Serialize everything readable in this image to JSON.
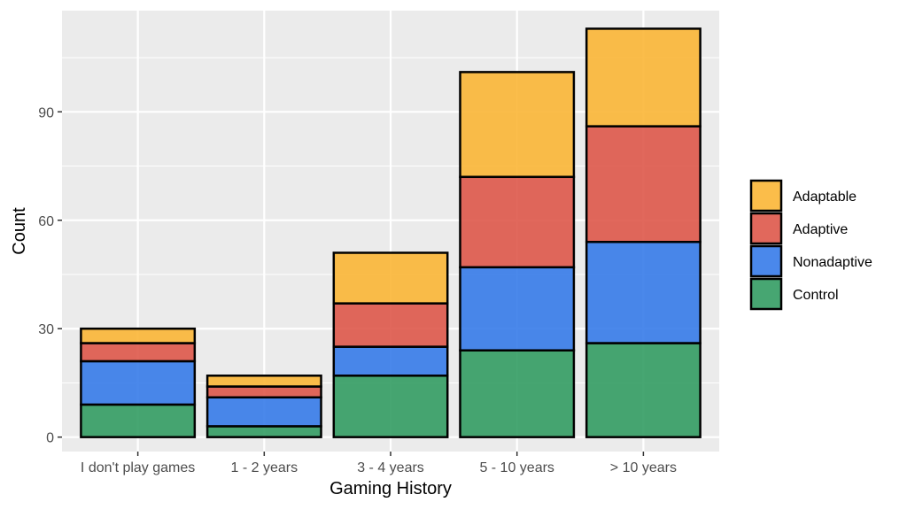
{
  "chart_data": {
    "type": "bar",
    "stacked": true,
    "categories": [
      "I don't play games",
      "1 - 2 years",
      "3 - 4 years",
      "5 - 10 years",
      "> 10 years"
    ],
    "series": [
      {
        "name": "Control",
        "color": "#2e9a5e",
        "values": [
          9,
          3,
          17,
          24,
          26
        ]
      },
      {
        "name": "Nonadaptive",
        "color": "#3178e8",
        "values": [
          12,
          8,
          8,
          23,
          28
        ]
      },
      {
        "name": "Adaptive",
        "color": "#dd5346",
        "values": [
          5,
          3,
          12,
          25,
          32
        ]
      },
      {
        "name": "Adaptable",
        "color": "#fab431",
        "values": [
          4,
          3,
          14,
          29,
          27
        ]
      }
    ],
    "legend_order": [
      "Adaptable",
      "Adaptive",
      "Nonadaptive",
      "Control"
    ],
    "xlabel": "Gaming History",
    "ylabel": "Count",
    "ylim": [
      -4,
      118
    ],
    "yticks": [
      0,
      30,
      60,
      90
    ],
    "grid": true,
    "legend_position": "right",
    "panel_color": "#ebebeb",
    "bar_outline_color": "#000000"
  }
}
